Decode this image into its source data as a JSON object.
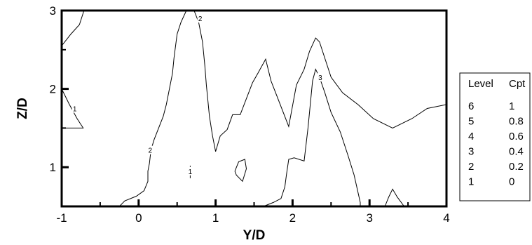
{
  "chart_data": {
    "type": "contour",
    "xlabel": "Y/D",
    "ylabel": "Z/D",
    "xlim": [
      -1,
      4
    ],
    "ylim": [
      0.5,
      3
    ],
    "x_ticks": [
      -1,
      0,
      1,
      2,
      3,
      4
    ],
    "y_ticks": [
      1,
      2,
      3
    ],
    "legend": {
      "headers": [
        "Level",
        "Cpt"
      ],
      "rows": [
        {
          "level": "6",
          "value": "1"
        },
        {
          "level": "5",
          "value": "0.8"
        },
        {
          "level": "4",
          "value": "0.6"
        },
        {
          "level": "3",
          "value": "0.4"
        },
        {
          "level": "2",
          "value": "0.2"
        },
        {
          "level": "1",
          "value": "0"
        }
      ]
    },
    "contours": [
      {
        "level": "2",
        "points": [
          [
            -1,
            2.55
          ],
          [
            -0.88,
            2.7
          ],
          [
            -0.77,
            2.82
          ],
          [
            -0.71,
            3.0
          ]
        ]
      },
      {
        "level": "1",
        "label": "1",
        "label_at": [
          -0.83,
          1.75
        ],
        "points": [
          [
            -1,
            2.0
          ],
          [
            -0.9,
            1.8
          ],
          [
            -0.8,
            1.62
          ],
          [
            -0.72,
            1.5
          ],
          [
            -0.88,
            1.5
          ],
          [
            -1,
            1.5
          ]
        ]
      },
      {
        "level": "2",
        "label": "2",
        "label_at": [
          0.15,
          1.22
        ],
        "points": [
          [
            -0.25,
            0.5
          ],
          [
            -0.18,
            0.57
          ],
          [
            -0.03,
            0.63
          ],
          [
            0.07,
            0.7
          ],
          [
            0.12,
            0.82
          ],
          [
            0.12,
            0.95
          ],
          [
            0.14,
            1.05
          ],
          [
            0.16,
            1.22
          ],
          [
            0.2,
            1.35
          ],
          [
            0.26,
            1.5
          ],
          [
            0.32,
            1.65
          ],
          [
            0.36,
            1.8
          ],
          [
            0.4,
            2.0
          ],
          [
            0.44,
            2.2
          ],
          [
            0.46,
            2.4
          ],
          [
            0.48,
            2.55
          ],
          [
            0.5,
            2.7
          ],
          [
            0.55,
            2.85
          ],
          [
            0.62,
            3.0
          ]
        ]
      },
      {
        "level": "2",
        "label": "2",
        "label_at": [
          0.8,
          2.9
        ],
        "points": [
          [
            0.72,
            3.0
          ],
          [
            0.78,
            2.85
          ],
          [
            0.83,
            2.6
          ],
          [
            0.86,
            2.3
          ],
          [
            0.88,
            2.05
          ],
          [
            0.9,
            1.85
          ],
          [
            0.92,
            1.65
          ],
          [
            0.96,
            1.4
          ],
          [
            1.0,
            1.2
          ],
          [
            1.06,
            1.4
          ],
          [
            1.15,
            1.48
          ],
          [
            1.22,
            1.67
          ],
          [
            1.32,
            1.67
          ],
          [
            1.48,
            2.08
          ],
          [
            1.55,
            2.2
          ],
          [
            1.65,
            2.38
          ],
          [
            1.72,
            2.1
          ],
          [
            1.82,
            1.85
          ],
          [
            1.95,
            1.52
          ],
          [
            2.05,
            2.05
          ],
          [
            2.15,
            2.25
          ],
          [
            2.22,
            2.48
          ],
          [
            2.3,
            2.65
          ],
          [
            2.35,
            2.6
          ],
          [
            2.4,
            2.45
          ],
          [
            2.5,
            2.15
          ],
          [
            2.65,
            1.95
          ],
          [
            2.85,
            1.8
          ],
          [
            3.05,
            1.62
          ],
          [
            3.3,
            1.5
          ],
          [
            3.55,
            1.62
          ],
          [
            3.75,
            1.75
          ],
          [
            4.0,
            1.8
          ]
        ]
      },
      {
        "level": "3",
        "label": "3",
        "label_at": [
          2.36,
          2.15
        ],
        "points": [
          [
            1.62,
            0.5
          ],
          [
            1.75,
            0.55
          ],
          [
            1.85,
            0.6
          ],
          [
            1.9,
            0.75
          ],
          [
            1.92,
            0.9
          ],
          [
            1.95,
            1.1
          ],
          [
            2.02,
            1.12
          ],
          [
            2.15,
            1.08
          ],
          [
            2.2,
            1.5
          ],
          [
            2.26,
            2.1
          ],
          [
            2.3,
            2.25
          ],
          [
            2.35,
            2.15
          ],
          [
            2.42,
            1.95
          ],
          [
            2.5,
            1.7
          ],
          [
            2.62,
            1.45
          ],
          [
            2.72,
            1.15
          ],
          [
            2.8,
            0.9
          ],
          [
            2.88,
            0.55
          ],
          [
            2.88,
            0.5
          ]
        ]
      },
      {
        "level": "1",
        "label": "1",
        "label_at": [
          0.67,
          0.95
        ],
        "points": [
          [
            0.67,
            0.86
          ],
          [
            0.67,
            1.02
          ]
        ]
      },
      {
        "level": "1",
        "points": [
          [
            1.25,
            0.95
          ],
          [
            1.3,
            1.07
          ],
          [
            1.38,
            1.1
          ],
          [
            1.4,
            0.98
          ],
          [
            1.35,
            0.82
          ],
          [
            1.27,
            0.9
          ],
          [
            1.25,
            0.95
          ]
        ]
      },
      {
        "level": "1",
        "points": [
          [
            3.2,
            0.5
          ],
          [
            3.25,
            0.62
          ],
          [
            3.3,
            0.72
          ],
          [
            3.36,
            0.62
          ],
          [
            3.45,
            0.5
          ]
        ]
      }
    ]
  }
}
